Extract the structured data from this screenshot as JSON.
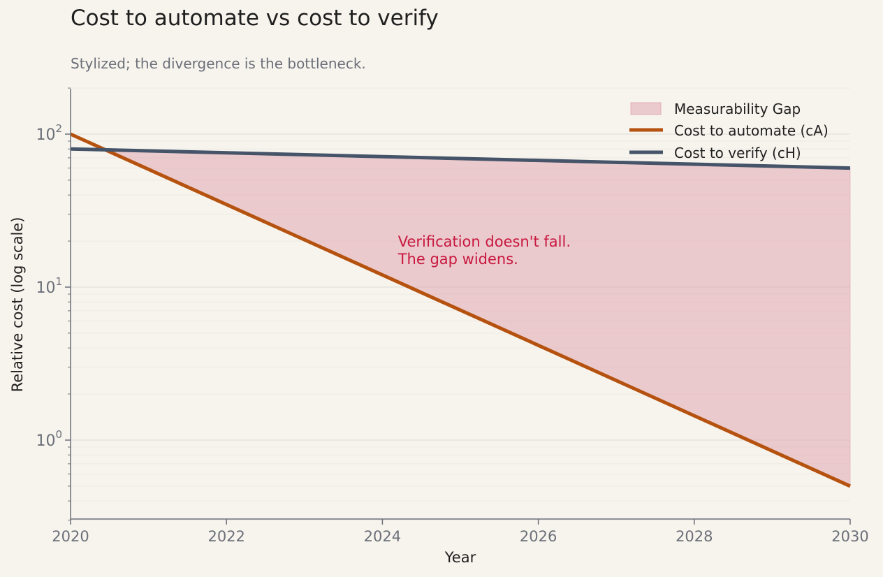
{
  "chart_data": {
    "type": "line",
    "title": "Cost to automate vs cost to verify",
    "subtitle": "Stylized; the divergence is the bottleneck.",
    "xlabel": "Year",
    "ylabel": "Relative cost (log scale)",
    "xlim": [
      2020,
      2030
    ],
    "ylim": [
      0.3,
      200
    ],
    "y_scale": "log",
    "x_ticks": [
      "2020",
      "2022",
      "2024",
      "2026",
      "2028",
      "2030"
    ],
    "x_tick_values": [
      2020,
      2022,
      2024,
      2026,
      2028,
      2030
    ],
    "y_ticks": [
      {
        "value": 1,
        "base": "10",
        "exp": "0"
      },
      {
        "value": 10,
        "base": "10",
        "exp": "1"
      },
      {
        "value": 100,
        "base": "10",
        "exp": "2"
      }
    ],
    "grid": true,
    "legend_position": "top-right",
    "series": [
      {
        "name": "Cost to automate (cA)",
        "color": "#b5520f",
        "x": [
          2020,
          2030
        ],
        "y": [
          100,
          0.5
        ]
      },
      {
        "name": "Cost to verify (cH)",
        "color": "#455468",
        "x": [
          2020,
          2030
        ],
        "y": [
          80,
          60
        ]
      }
    ],
    "fill": {
      "name": "Measurability Gap",
      "color": "#e0a0ab",
      "between": [
        "Cost to automate (cA)",
        "Cost to verify (cH)"
      ]
    },
    "annotation": {
      "lines": [
        "Verification doesn't fall.",
        "The gap widens."
      ],
      "x": 2024.2,
      "y": 20,
      "color": "#c8173f"
    }
  }
}
